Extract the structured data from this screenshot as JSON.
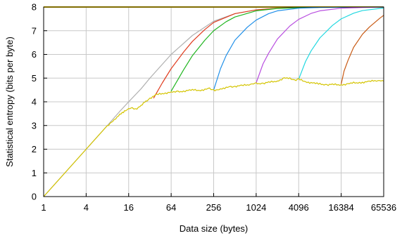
{
  "chart_data": {
    "type": "line",
    "xlabel": "Data size (bytes)",
    "ylabel": "Statistical entropy (bits per byte)",
    "x_scale": "log2",
    "xlim": [
      1,
      65536
    ],
    "ylim": [
      0,
      8
    ],
    "x_ticks": [
      1,
      4,
      16,
      64,
      256,
      1024,
      4096,
      16384,
      65536
    ],
    "x_tick_labels": [
      "1",
      "4",
      "16",
      "64",
      "256",
      "1024",
      "4096",
      "16384",
      "65536"
    ],
    "y_ticks": [
      0,
      1,
      2,
      3,
      4,
      5,
      6,
      7,
      8
    ],
    "y_tick_labels": [
      "0",
      "1",
      "2",
      "3",
      "4",
      "5",
      "6",
      "7",
      "8"
    ],
    "grid": true,
    "legend": "none",
    "series": [
      {
        "color": "#ffd700",
        "style": "flat",
        "x": [
          1,
          65536
        ],
        "y": [
          8,
          8
        ]
      },
      {
        "color": "#b0b0b0",
        "x": [
          1,
          2,
          4,
          8,
          12,
          16,
          24,
          32,
          64,
          128,
          256,
          512,
          1024,
          2048,
          4096,
          8192,
          65536
        ],
        "y": [
          0,
          1,
          2,
          3,
          3.6,
          4,
          4.55,
          5.0,
          6.0,
          6.8,
          7.4,
          7.72,
          7.88,
          7.95,
          7.98,
          7.99,
          8.0
        ]
      },
      {
        "color": "#e03c1f",
        "x": [
          36,
          48,
          64,
          96,
          128,
          192,
          256,
          512,
          1024,
          2048,
          4096,
          8192,
          65536
        ],
        "y": [
          4.15,
          4.8,
          5.4,
          6.1,
          6.55,
          7.05,
          7.35,
          7.72,
          7.88,
          7.95,
          7.98,
          7.99,
          8.0
        ]
      },
      {
        "color": "#1fb51f",
        "x": [
          64,
          96,
          128,
          192,
          256,
          384,
          512,
          1024,
          2048,
          4096,
          8192,
          16384,
          65536
        ],
        "y": [
          4.45,
          5.35,
          5.95,
          6.6,
          7.0,
          7.38,
          7.58,
          7.84,
          7.94,
          7.97,
          7.99,
          8.0,
          8.0
        ]
      },
      {
        "color": "#1f8fe8",
        "x": [
          256,
          320,
          384,
          512,
          768,
          1024,
          1536,
          2048,
          4096,
          8192,
          16384,
          65536
        ],
        "y": [
          4.5,
          5.4,
          5.95,
          6.6,
          7.15,
          7.45,
          7.72,
          7.84,
          7.95,
          7.98,
          7.99,
          8.0
        ]
      },
      {
        "color": "#b94fe0",
        "x": [
          1024,
          1280,
          1536,
          2048,
          3072,
          4096,
          6144,
          8192,
          16384,
          32768,
          65536
        ],
        "y": [
          4.8,
          5.6,
          6.05,
          6.65,
          7.2,
          7.48,
          7.73,
          7.84,
          7.95,
          7.98,
          8.0
        ]
      },
      {
        "color": "#22d8e0",
        "x": [
          4096,
          5120,
          6144,
          8192,
          12288,
          16384,
          24576,
          32768,
          65536
        ],
        "y": [
          4.95,
          5.7,
          6.15,
          6.7,
          7.22,
          7.5,
          7.74,
          7.85,
          7.96
        ]
      },
      {
        "color": "#c85a14",
        "x": [
          16384,
          18000,
          20480,
          24576,
          32768,
          40960,
          49152,
          57344,
          65536
        ],
        "y": [
          4.75,
          5.3,
          5.75,
          6.3,
          6.85,
          7.15,
          7.35,
          7.52,
          7.65
        ]
      },
      {
        "color": "#d4c400",
        "style": "jagged",
        "x": [
          1,
          2,
          4,
          8,
          9,
          10,
          11,
          12,
          13,
          14,
          15,
          16,
          18,
          20,
          22,
          24,
          26,
          28,
          32,
          40,
          48,
          64,
          80,
          96,
          128,
          160,
          192,
          224,
          256,
          288,
          320,
          384,
          448,
          512,
          640,
          768,
          896,
          1024,
          1280,
          1536,
          2048,
          2560,
          3072,
          3584,
          4096,
          5120,
          6144,
          8192,
          10240,
          12288,
          16384,
          20480,
          24576,
          32768,
          40960,
          49152,
          57344,
          65536
        ],
        "y": [
          0,
          1,
          2,
          3,
          3.1,
          3.25,
          3.35,
          3.45,
          3.55,
          3.6,
          3.65,
          3.7,
          3.72,
          3.7,
          3.75,
          3.85,
          3.95,
          4.0,
          4.15,
          4.3,
          4.35,
          4.4,
          4.42,
          4.45,
          4.5,
          4.48,
          4.52,
          4.55,
          4.5,
          4.48,
          4.55,
          4.6,
          4.62,
          4.65,
          4.68,
          4.72,
          4.74,
          4.77,
          4.78,
          4.82,
          4.88,
          5.0,
          4.98,
          4.92,
          4.95,
          4.85,
          4.8,
          4.75,
          4.72,
          4.73,
          4.72,
          4.75,
          4.8,
          4.82,
          4.85,
          4.9,
          4.88,
          4.87
        ]
      }
    ]
  }
}
